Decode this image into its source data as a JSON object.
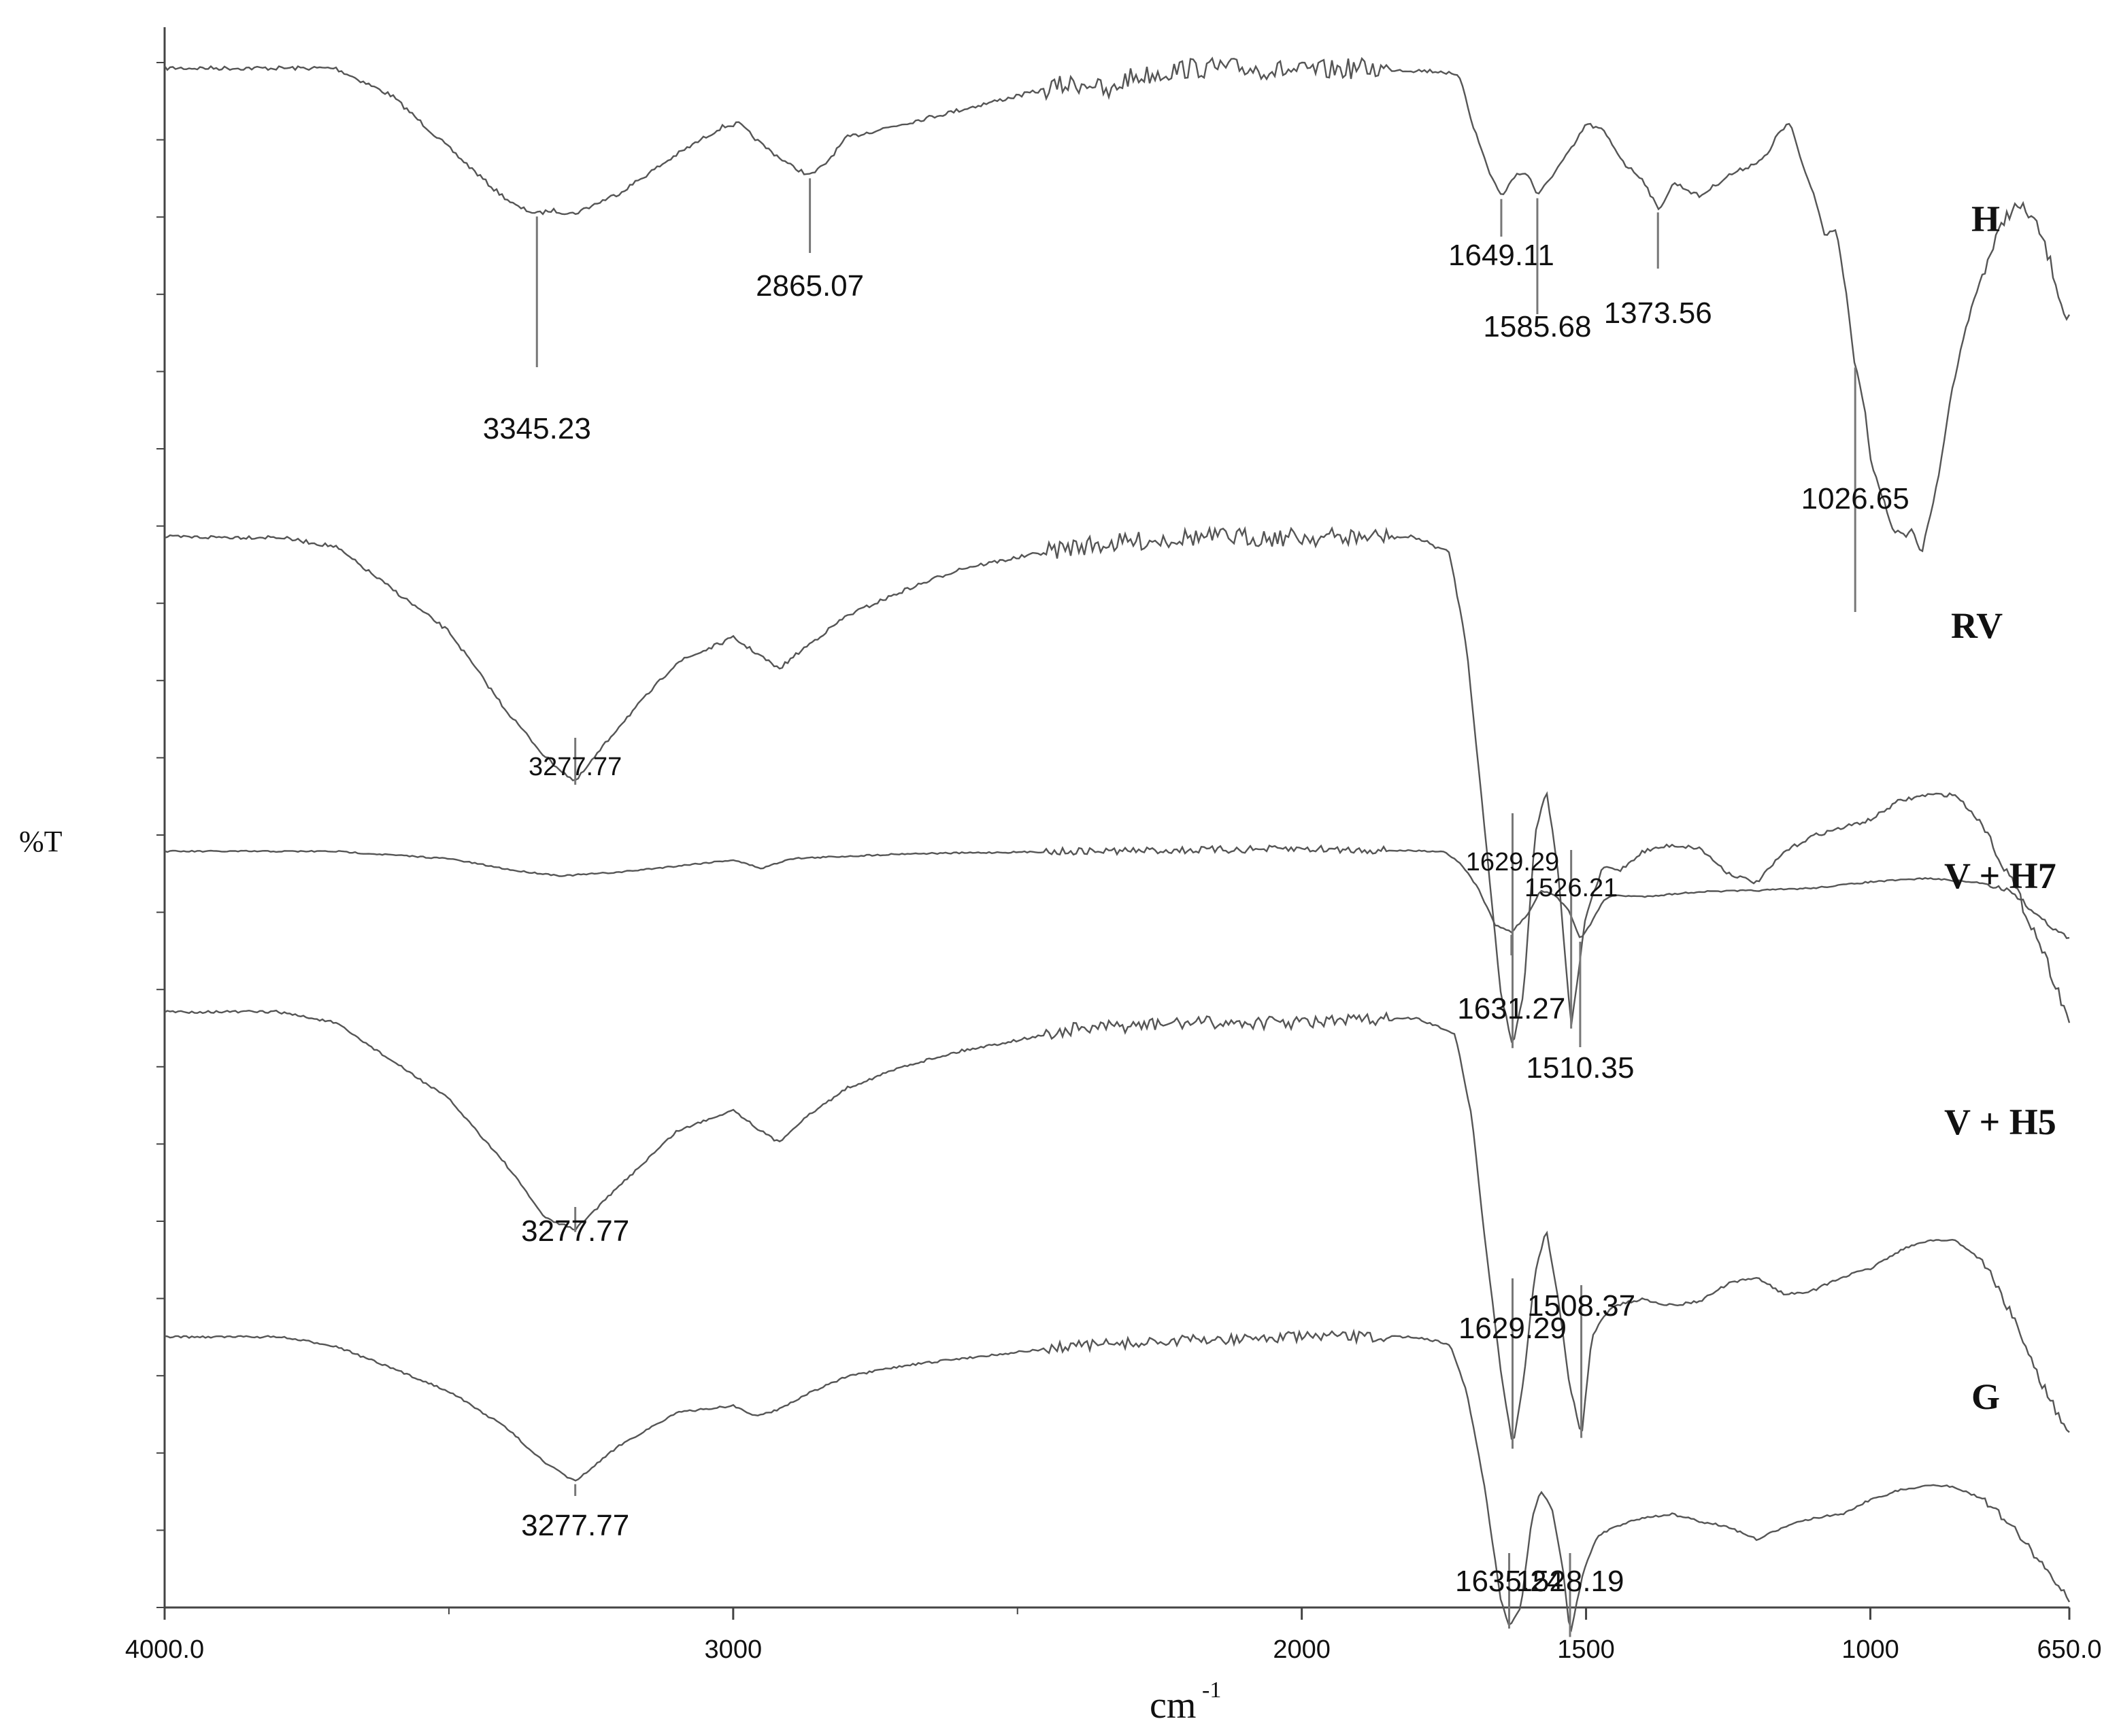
{
  "chart_data": {
    "type": "line",
    "title": "",
    "xlabel": "cm",
    "xlabel_superscript": "-1",
    "ylabel": "%T",
    "xlim": [
      4000.0,
      650.0
    ],
    "x_reversed": true,
    "x_ticks": [
      {
        "value": 4000,
        "label": "4000.0"
      },
      {
        "value": 3000,
        "label": "3000"
      },
      {
        "value": 2000,
        "label": "2000"
      },
      {
        "value": 1500,
        "label": "1500"
      },
      {
        "value": 1000,
        "label": "1000"
      },
      {
        "value": 650,
        "label": "650.0"
      }
    ],
    "y_tick_count": 20,
    "y_offset_stacked": true,
    "grid": false,
    "line_color": "#555555",
    "series": [
      {
        "name": "H",
        "points": [
          [
            4000,
            0.02
          ],
          [
            3700,
            0.02
          ],
          [
            3600,
            0.1
          ],
          [
            3500,
            0.25
          ],
          [
            3420,
            0.37
          ],
          [
            3380,
            0.42
          ],
          [
            3345,
            0.44
          ],
          [
            3320,
            0.43
          ],
          [
            3280,
            0.44
          ],
          [
            3200,
            0.38
          ],
          [
            3100,
            0.27
          ],
          [
            3020,
            0.19
          ],
          [
            2990,
            0.18
          ],
          [
            2950,
            0.24
          ],
          [
            2900,
            0.3
          ],
          [
            2865,
            0.33
          ],
          [
            2840,
            0.3
          ],
          [
            2800,
            0.22
          ],
          [
            2700,
            0.18
          ],
          [
            2600,
            0.14
          ],
          [
            2500,
            0.1
          ],
          [
            2420,
            0.07
          ],
          [
            2370,
            0.06
          ],
          [
            2340,
            0.1
          ],
          [
            2310,
            0.05
          ],
          [
            2200,
            0.02
          ],
          [
            2100,
            0.02
          ],
          [
            2000,
            0.03
          ],
          [
            1900,
            0.02
          ],
          [
            1750,
            0.03
          ],
          [
            1720,
            0.05
          ],
          [
            1700,
            0.18
          ],
          [
            1670,
            0.32
          ],
          [
            1649,
            0.39
          ],
          [
            1620,
            0.32
          ],
          [
            1600,
            0.33
          ],
          [
            1585,
            0.39
          ],
          [
            1560,
            0.33
          ],
          [
            1520,
            0.24
          ],
          [
            1500,
            0.18
          ],
          [
            1470,
            0.2
          ],
          [
            1430,
            0.3
          ],
          [
            1400,
            0.34
          ],
          [
            1373,
            0.43
          ],
          [
            1345,
            0.35
          ],
          [
            1300,
            0.39
          ],
          [
            1250,
            0.33
          ],
          [
            1210,
            0.3
          ],
          [
            1180,
            0.27
          ],
          [
            1160,
            0.2
          ],
          [
            1140,
            0.18
          ],
          [
            1120,
            0.3
          ],
          [
            1100,
            0.38
          ],
          [
            1080,
            0.5
          ],
          [
            1060,
            0.48
          ],
          [
            1040,
            0.7
          ],
          [
            1030,
            0.85
          ],
          [
            1010,
            1.0
          ],
          [
            1000,
            1.15
          ],
          [
            980,
            1.25
          ],
          [
            960,
            1.35
          ],
          [
            940,
            1.37
          ],
          [
            926,
            1.35
          ],
          [
            910,
            1.42
          ],
          [
            900,
            1.35
          ],
          [
            880,
            1.2
          ],
          [
            860,
            0.98
          ],
          [
            840,
            0.82
          ],
          [
            820,
            0.7
          ],
          [
            800,
            0.6
          ],
          [
            780,
            0.52
          ],
          [
            760,
            0.44
          ],
          [
            740,
            0.42
          ],
          [
            720,
            0.44
          ],
          [
            700,
            0.5
          ],
          [
            680,
            0.6
          ],
          [
            660,
            0.72
          ],
          [
            650,
            0.74
          ]
        ],
        "peaks": [
          3345.23,
          2865.07,
          1649.11,
          1585.68,
          1373.56,
          1026.65
        ]
      },
      {
        "name": "RV",
        "points": [
          [
            4000,
            0.0
          ],
          [
            3800,
            0.0
          ],
          [
            3700,
            0.03
          ],
          [
            3500,
            0.3
          ],
          [
            3400,
            0.55
          ],
          [
            3330,
            0.7
          ],
          [
            3278,
            0.78
          ],
          [
            3200,
            0.6
          ],
          [
            3100,
            0.4
          ],
          [
            3000,
            0.32
          ],
          [
            2950,
            0.38
          ],
          [
            2920,
            0.42
          ],
          [
            2880,
            0.36
          ],
          [
            2800,
            0.25
          ],
          [
            2700,
            0.17
          ],
          [
            2600,
            0.1
          ],
          [
            2400,
            0.03
          ],
          [
            2200,
            0.0
          ],
          [
            2000,
            0.0
          ],
          [
            1800,
            0.0
          ],
          [
            1740,
            0.05
          ],
          [
            1710,
            0.35
          ],
          [
            1680,
            0.9
          ],
          [
            1650,
            1.45
          ],
          [
            1629,
            1.62
          ],
          [
            1610,
            1.45
          ],
          [
            1590,
            0.95
          ],
          [
            1570,
            0.8
          ],
          [
            1550,
            1.05
          ],
          [
            1526,
            1.56
          ],
          [
            1500,
            1.2
          ],
          [
            1470,
            1.05
          ],
          [
            1440,
            1.06
          ],
          [
            1400,
            1.0
          ],
          [
            1350,
            0.98
          ],
          [
            1300,
            0.99
          ],
          [
            1250,
            1.07
          ],
          [
            1200,
            1.1
          ],
          [
            1150,
            1.0
          ],
          [
            1100,
            0.95
          ],
          [
            1000,
            0.9
          ],
          [
            950,
            0.84
          ],
          [
            900,
            0.82
          ],
          [
            850,
            0.82
          ],
          [
            800,
            0.92
          ],
          [
            750,
            1.1
          ],
          [
            700,
            1.3
          ],
          [
            650,
            1.54
          ]
        ],
        "peaks": [
          3277.77,
          1629.29,
          1526.21
        ]
      },
      {
        "name": "V + H7",
        "points": [
          [
            4000,
            0.0
          ],
          [
            3700,
            0.0
          ],
          [
            3500,
            0.06
          ],
          [
            3380,
            0.16
          ],
          [
            3300,
            0.2
          ],
          [
            3200,
            0.17
          ],
          [
            3000,
            0.07
          ],
          [
            2950,
            0.14
          ],
          [
            2900,
            0.06
          ],
          [
            2700,
            0.02
          ],
          [
            2400,
            0.0
          ],
          [
            2000,
            -0.02
          ],
          [
            1750,
            0.0
          ],
          [
            1720,
            0.1
          ],
          [
            1690,
            0.3
          ],
          [
            1660,
            0.6
          ],
          [
            1631,
            0.66
          ],
          [
            1600,
            0.5
          ],
          [
            1580,
            0.32
          ],
          [
            1555,
            0.36
          ],
          [
            1530,
            0.48
          ],
          [
            1510,
            0.72
          ],
          [
            1490,
            0.58
          ],
          [
            1470,
            0.4
          ],
          [
            1450,
            0.36
          ],
          [
            1400,
            0.37
          ],
          [
            1300,
            0.33
          ],
          [
            1200,
            0.32
          ],
          [
            1100,
            0.3
          ],
          [
            1000,
            0.25
          ],
          [
            900,
            0.22
          ],
          [
            800,
            0.26
          ],
          [
            750,
            0.33
          ],
          [
            700,
            0.55
          ],
          [
            650,
            0.72
          ]
        ],
        "peaks": [
          1631.27,
          1510.35
        ]
      },
      {
        "name": "V + H5",
        "points": [
          [
            4000,
            0.0
          ],
          [
            3800,
            0.0
          ],
          [
            3700,
            0.05
          ],
          [
            3500,
            0.4
          ],
          [
            3400,
            0.7
          ],
          [
            3330,
            0.95
          ],
          [
            3278,
            1.0
          ],
          [
            3200,
            0.8
          ],
          [
            3100,
            0.55
          ],
          [
            3000,
            0.45
          ],
          [
            2950,
            0.55
          ],
          [
            2920,
            0.6
          ],
          [
            2880,
            0.5
          ],
          [
            2800,
            0.35
          ],
          [
            2700,
            0.25
          ],
          [
            2600,
            0.18
          ],
          [
            2400,
            0.08
          ],
          [
            2200,
            0.05
          ],
          [
            2000,
            0.05
          ],
          [
            1800,
            0.03
          ],
          [
            1730,
            0.1
          ],
          [
            1700,
            0.5
          ],
          [
            1680,
            1.0
          ],
          [
            1650,
            1.65
          ],
          [
            1629,
            2.0
          ],
          [
            1610,
            1.7
          ],
          [
            1590,
            1.2
          ],
          [
            1570,
            1.0
          ],
          [
            1550,
            1.3
          ],
          [
            1530,
            1.7
          ],
          [
            1508,
            1.95
          ],
          [
            1490,
            1.5
          ],
          [
            1470,
            1.4
          ],
          [
            1450,
            1.35
          ],
          [
            1400,
            1.32
          ],
          [
            1350,
            1.35
          ],
          [
            1300,
            1.33
          ],
          [
            1250,
            1.25
          ],
          [
            1200,
            1.22
          ],
          [
            1150,
            1.3
          ],
          [
            1100,
            1.28
          ],
          [
            1050,
            1.22
          ],
          [
            1000,
            1.18
          ],
          [
            950,
            1.1
          ],
          [
            900,
            1.05
          ],
          [
            850,
            1.05
          ],
          [
            800,
            1.15
          ],
          [
            750,
            1.4
          ],
          [
            700,
            1.7
          ],
          [
            650,
            1.95
          ]
        ],
        "peaks": [
          3277.77,
          1629.29,
          1508.37
        ]
      },
      {
        "name": "G",
        "points": [
          [
            4000,
            0.0
          ],
          [
            3800,
            0.0
          ],
          [
            3700,
            0.05
          ],
          [
            3500,
            0.3
          ],
          [
            3400,
            0.5
          ],
          [
            3330,
            0.7
          ],
          [
            3278,
            0.8
          ],
          [
            3200,
            0.6
          ],
          [
            3100,
            0.42
          ],
          [
            3000,
            0.38
          ],
          [
            2960,
            0.44
          ],
          [
            2920,
            0.4
          ],
          [
            2860,
            0.3
          ],
          [
            2800,
            0.22
          ],
          [
            2700,
            0.16
          ],
          [
            2600,
            0.12
          ],
          [
            2400,
            0.05
          ],
          [
            2200,
            0.02
          ],
          [
            2000,
            0.0
          ],
          [
            1800,
            0.0
          ],
          [
            1740,
            0.04
          ],
          [
            1710,
            0.3
          ],
          [
            1680,
            0.8
          ],
          [
            1650,
            1.45
          ],
          [
            1635,
            1.6
          ],
          [
            1615,
            1.5
          ],
          [
            1595,
            1.0
          ],
          [
            1580,
            0.85
          ],
          [
            1560,
            0.95
          ],
          [
            1540,
            1.3
          ],
          [
            1528,
            1.65
          ],
          [
            1505,
            1.3
          ],
          [
            1480,
            1.1
          ],
          [
            1450,
            1.05
          ],
          [
            1400,
            1.0
          ],
          [
            1350,
            0.98
          ],
          [
            1300,
            1.02
          ],
          [
            1250,
            1.05
          ],
          [
            1200,
            1.12
          ],
          [
            1150,
            1.05
          ],
          [
            1100,
            1.0
          ],
          [
            1050,
            0.98
          ],
          [
            1000,
            0.9
          ],
          [
            950,
            0.85
          ],
          [
            900,
            0.82
          ],
          [
            850,
            0.83
          ],
          [
            800,
            0.9
          ],
          [
            750,
            1.05
          ],
          [
            700,
            1.25
          ],
          [
            650,
            1.45
          ]
        ],
        "peaks": [
          3277.77,
          1635.24,
          1528.19
        ]
      }
    ]
  }
}
